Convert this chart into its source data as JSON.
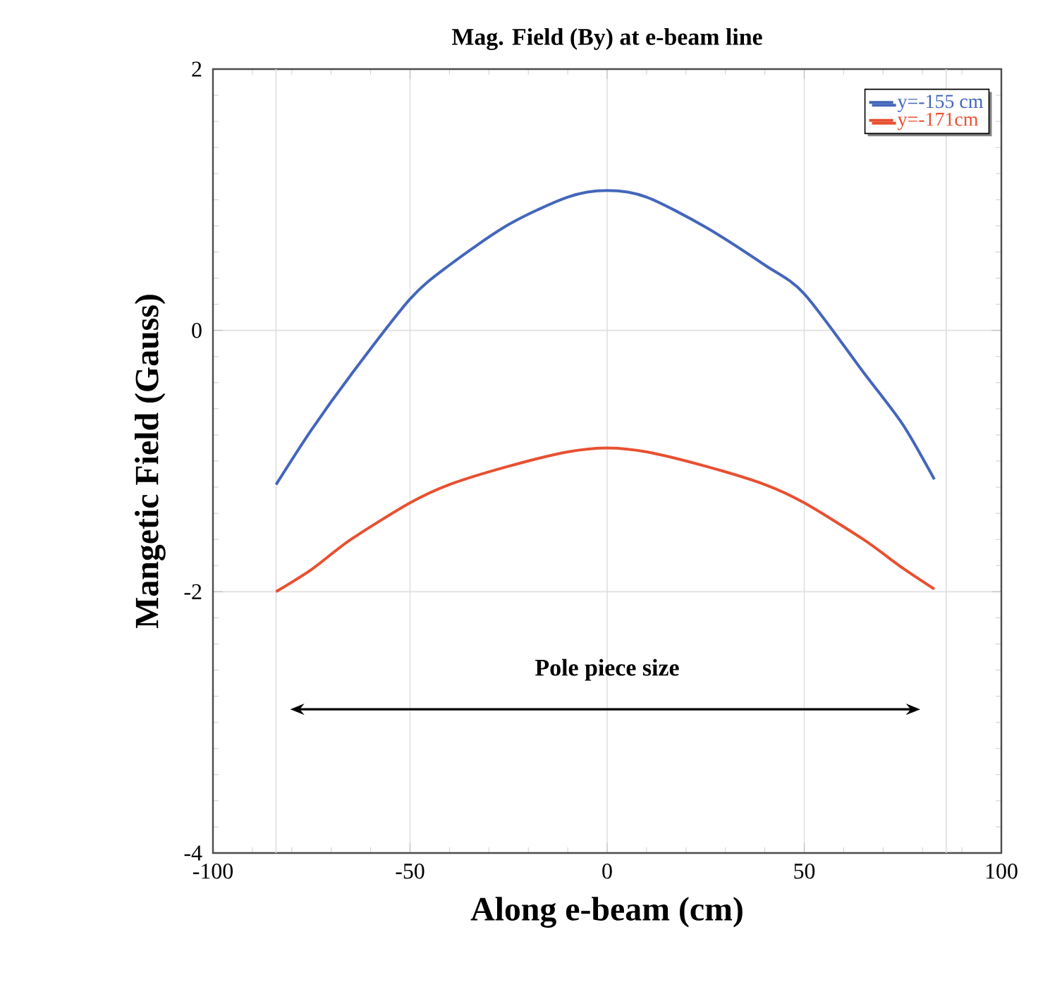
{
  "chart_data": {
    "type": "line",
    "title": "Mag. Field (By)  at e-beam line",
    "xlabel": "Along e-beam (cm)",
    "ylabel": "Mangetic Field (Gauss)",
    "series": [
      {
        "name": "y=-155 cm",
        "color": "#4466bb",
        "x": [
          -84,
          -75,
          -65,
          -50,
          -40,
          -25,
          -10,
          0,
          10,
          25,
          40,
          50,
          65,
          75,
          83
        ],
        "values": [
          -1.18,
          -0.76,
          -0.34,
          0.24,
          0.5,
          0.81,
          1.02,
          1.07,
          1.02,
          0.79,
          0.5,
          0.28,
          -0.32,
          -0.72,
          -1.14
        ]
      },
      {
        "name": "y=-171cm",
        "color": "#e85030",
        "x": [
          -84,
          -75,
          -65,
          -50,
          -40,
          -25,
          -10,
          0,
          10,
          25,
          40,
          50,
          65,
          75,
          83
        ],
        "values": [
          -2.0,
          -1.83,
          -1.6,
          -1.32,
          -1.18,
          -1.04,
          -0.93,
          -0.9,
          -0.93,
          -1.04,
          -1.18,
          -1.32,
          -1.6,
          -1.82,
          -1.98
        ]
      }
    ],
    "xlim": [
      -100,
      100
    ],
    "ylim": [
      -4,
      2
    ],
    "xticks": [
      -100,
      -50,
      0,
      50,
      100
    ],
    "yticks": [
      -4,
      -2,
      0,
      2
    ],
    "grid": true,
    "legend": "top right",
    "line_style": "solid",
    "marker": "none",
    "ref_lines": [
      {
        "axis": "x",
        "value": -84,
        "color": "#dddddd"
      },
      {
        "axis": "x",
        "value": 86,
        "color": "#dddddd"
      }
    ],
    "annotations": [
      "Pole piece size"
    ]
  }
}
